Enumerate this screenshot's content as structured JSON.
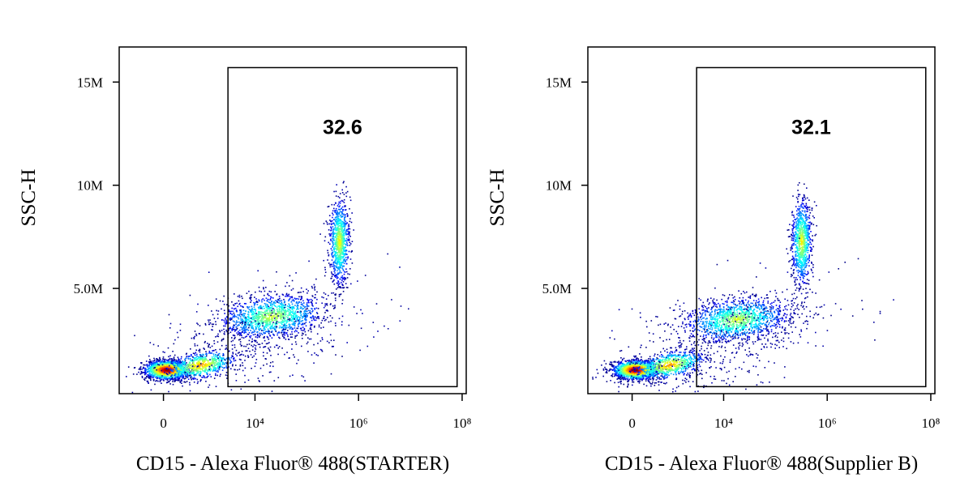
{
  "chart_data": [
    {
      "type": "dotplot",
      "x_label": "CD15 - Alexa Fluor® 488(STARTER)",
      "y_label": "SSC-H",
      "xscale": "biexponential",
      "linear_width": 342,
      "xlim": [
        -1200,
        120000000
      ],
      "ylim": [
        -100000,
        16700000
      ],
      "xticks": [
        0,
        {
          "value": 10000,
          "label": "10⁴"
        },
        {
          "value": 1000000,
          "label": "10⁶"
        },
        {
          "value": 100000000,
          "label": "10⁸"
        }
      ],
      "yticks": [
        {
          "value": 5000000,
          "label": "5.0M"
        },
        {
          "value": 10000000,
          "label": "10M"
        },
        {
          "value": 15000000,
          "label": "15M"
        }
      ],
      "gate": {
        "x": [
          3000,
          80000000
        ],
        "y": [
          240000,
          15700000
        ],
        "value": 32.6
      }
    },
    {
      "type": "dotplot",
      "x_label": "CD15 - Alexa Fluor® 488(Supplier B)",
      "y_label": "SSC-H",
      "xscale": "biexponential",
      "linear_width": 342,
      "xlim": [
        -1200,
        120000000
      ],
      "ylim": [
        -100000,
        16700000
      ],
      "xticks": [
        0,
        {
          "value": 10000,
          "label": "10⁴"
        },
        {
          "value": 1000000,
          "label": "10⁶"
        },
        {
          "value": 100000000,
          "label": "10⁸"
        }
      ],
      "yticks": [
        {
          "value": 5000000,
          "label": "5.0M"
        },
        {
          "value": 10000000,
          "label": "10M"
        },
        {
          "value": 15000000,
          "label": "15M"
        }
      ],
      "gate": {
        "x": [
          3000,
          80000000
        ],
        "y": [
          240000,
          15700000
        ],
        "value": 32.1
      }
    }
  ]
}
